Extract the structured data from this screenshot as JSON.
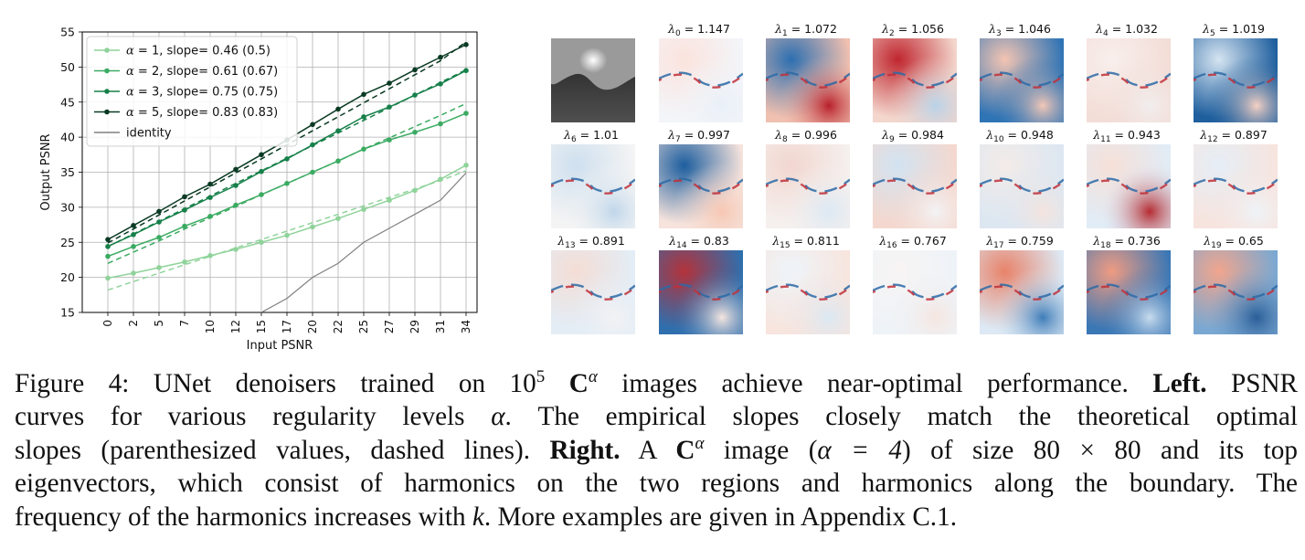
{
  "chart_data": {
    "type": "line",
    "xlabel": "Input PSNR",
    "ylabel": "Output PSNR",
    "x_tick_labels": [
      "0",
      "2",
      "5",
      "7",
      "10",
      "12",
      "15",
      "17",
      "20",
      "22",
      "25",
      "27",
      "29",
      "31",
      "34"
    ],
    "y_ticks": [
      15,
      20,
      25,
      30,
      35,
      40,
      45,
      50,
      55
    ],
    "ylim": [
      15,
      55
    ],
    "grid": true,
    "legend_position": "upper-left",
    "series": [
      {
        "name": "α = 1, slope= 0.46 (0.5)",
        "legend_alpha": "1",
        "legend_slope": "slope= 0.46 (0.5)",
        "color": "#8fd39a",
        "values": [
          19.9,
          20.6,
          21.4,
          22.2,
          23.1,
          24.0,
          25.0,
          26.0,
          27.2,
          28.4,
          29.7,
          31.0,
          32.4,
          34.0,
          36.0
        ],
        "theory_dashed": [
          18.2,
          19.4,
          20.6,
          21.8,
          23.0,
          24.2,
          25.4,
          26.6,
          27.8,
          29.0,
          30.2,
          31.4,
          32.6,
          33.8,
          35.2
        ]
      },
      {
        "name": "α = 2, slope= 0.61 (0.67)",
        "legend_alpha": "2",
        "legend_slope": "slope= 0.61 (0.67)",
        "color": "#3bab62",
        "values": [
          23.0,
          24.4,
          25.7,
          27.3,
          28.7,
          30.3,
          31.8,
          33.4,
          35.0,
          36.6,
          38.3,
          39.6,
          40.7,
          41.9,
          43.4
        ],
        "theory_dashed": [
          22.0,
          23.6,
          25.2,
          26.9,
          28.5,
          30.1,
          31.8,
          33.4,
          35.0,
          36.6,
          38.3,
          39.9,
          41.5,
          43.1,
          44.8
        ]
      },
      {
        "name": "α = 3, slope= 0.75 (0.75)",
        "legend_alpha": "3",
        "legend_slope": "slope= 0.75 (0.75)",
        "color": "#17804a",
        "values": [
          24.4,
          26.1,
          27.9,
          29.6,
          31.4,
          33.1,
          35.1,
          36.9,
          38.9,
          40.9,
          42.9,
          44.3,
          46.0,
          47.6,
          49.5
        ],
        "theory_dashed": [
          24.4,
          26.2,
          28.0,
          29.8,
          31.6,
          33.4,
          35.2,
          37.0,
          38.8,
          40.6,
          42.4,
          44.2,
          46.0,
          47.8,
          49.6
        ]
      },
      {
        "name": "α = 5, slope= 0.83 (0.83)",
        "legend_alpha": "5",
        "legend_slope": "slope= 0.83 (0.83)",
        "color": "#0a3a23",
        "values": [
          25.4,
          27.4,
          29.4,
          31.5,
          33.3,
          35.4,
          37.5,
          39.6,
          41.8,
          44.0,
          46.1,
          47.7,
          49.6,
          51.4,
          53.2
        ],
        "theory_dashed": [
          24.9,
          26.9,
          28.9,
          30.9,
          32.9,
          34.9,
          36.9,
          38.9,
          40.9,
          42.9,
          44.9,
          46.9,
          48.9,
          50.9,
          53.6
        ]
      }
    ],
    "identity": {
      "name": "identity",
      "color": "#808080",
      "values": [
        null,
        null,
        null,
        null,
        null,
        null,
        15.0,
        17.0,
        20.0,
        22.0,
        25.0,
        27.0,
        29.0,
        31.0,
        34.9
      ]
    }
  },
  "eigen_panel": {
    "tiles": [
      {
        "sym": "λ",
        "sub": "0",
        "val": "1.147"
      },
      {
        "sym": "λ",
        "sub": "1",
        "val": "1.072"
      },
      {
        "sym": "λ",
        "sub": "2",
        "val": "1.056"
      },
      {
        "sym": "λ",
        "sub": "3",
        "val": "1.046"
      },
      {
        "sym": "λ",
        "sub": "4",
        "val": "1.032"
      },
      {
        "sym": "λ",
        "sub": "5",
        "val": "1.019"
      },
      {
        "sym": "λ",
        "sub": "6",
        "val": "1.01"
      },
      {
        "sym": "λ",
        "sub": "7",
        "val": "0.997"
      },
      {
        "sym": "λ",
        "sub": "8",
        "val": "0.996"
      },
      {
        "sym": "λ",
        "sub": "9",
        "val": "0.984"
      },
      {
        "sym": "λ",
        "sub": "10",
        "val": "0.948"
      },
      {
        "sym": "λ",
        "sub": "11",
        "val": "0.943"
      },
      {
        "sym": "λ",
        "sub": "12",
        "val": "0.897"
      },
      {
        "sym": "λ",
        "sub": "13",
        "val": "0.891"
      },
      {
        "sym": "λ",
        "sub": "14",
        "val": "0.83"
      },
      {
        "sym": "λ",
        "sub": "15",
        "val": "0.811"
      },
      {
        "sym": "λ",
        "sub": "16",
        "val": "0.767"
      },
      {
        "sym": "λ",
        "sub": "17",
        "val": "0.759"
      },
      {
        "sym": "λ",
        "sub": "18",
        "val": "0.736"
      },
      {
        "sym": "λ",
        "sub": "19",
        "val": "0.65"
      }
    ]
  },
  "caption": {
    "prefix": "Figure 4: UNet denoisers trained on 10",
    "exp": "5",
    "bold_c": "C",
    "alpha": "α",
    "rest1": " images achieve near-optimal performance.",
    "left_label": "Left.",
    "left_tail": " PSNR",
    "line2": "curves for various regularity levels ",
    "line2b": ". The empirical slopes closely match the theoretical optimal",
    "line3a": "slopes (parenthesized values, dashed lines). ",
    "right_label": "Right.",
    "line3b": " A ",
    "line3c": " image (",
    "alpha_eq": "α = 4",
    "line3d": ") of size 80 × 80 and its top",
    "line4": "eigenvectors, which consist of harmonics on the two regions and harmonics along the boundary. The",
    "line5a": "frequency of the harmonics increases with ",
    "k": "k",
    "line5b": ". More examples are given in Appendix C.1."
  }
}
